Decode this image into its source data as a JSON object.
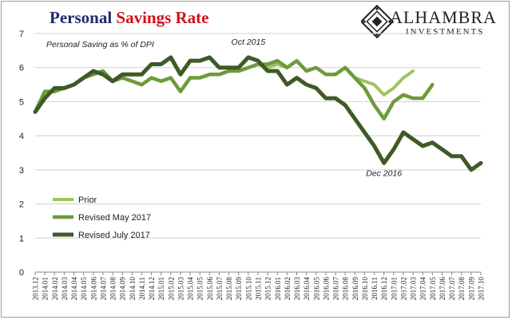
{
  "header": {
    "title_part1": "Personal",
    "title_part2": "Savings Rate",
    "brand_name": "ALHAMBRA",
    "brand_sub": "INVESTMENTS"
  },
  "colors": {
    "prior": "#9dc45f",
    "revised_may": "#6f9a3a",
    "revised_july": "#3f5a25",
    "title_blue": "#1f2a6b",
    "title_red": "#d0121b",
    "gridline": "#cfcfcf"
  },
  "chart_data": {
    "type": "line",
    "title": "Personal Savings Rate",
    "subtitle": "Personal Saving as % of DPI",
    "ylim": [
      0,
      7
    ],
    "yticks": [
      0,
      1,
      2,
      3,
      4,
      5,
      6,
      7
    ],
    "grid": true,
    "legend_position": "bottom-left",
    "categories": [
      "2013.12",
      "2014.01",
      "2014.02",
      "2014.03",
      "2014.04",
      "2014.05",
      "2014.06",
      "2014.07",
      "2014.08",
      "2014.09",
      "2014.10",
      "2014.11",
      "2014.12",
      "2015.01",
      "2015.02",
      "2015.03",
      "2015.04",
      "2015.05",
      "2015.06",
      "2015.07",
      "2015.08",
      "2015.09",
      "2015.10",
      "2015.11",
      "2015.12",
      "2016.01",
      "2016.02",
      "2016.03",
      "2016.04",
      "2016.05",
      "2016.06",
      "2016.07",
      "2016.08",
      "2016.09",
      "2016.10",
      "2016.11",
      "2016.12",
      "2017.01",
      "2017.02",
      "2017.03",
      "2017.04",
      "2017.05",
      "2017.06",
      "2017.07",
      "2017.08",
      "2017.09",
      "2017.10"
    ],
    "series": [
      {
        "name": "Prior",
        "color": "#9dc45f",
        "values": [
          4.7,
          5.3,
          5.3,
          5.4,
          5.5,
          5.7,
          5.8,
          5.9,
          5.6,
          5.7,
          5.6,
          5.5,
          5.7,
          5.6,
          5.7,
          5.3,
          5.7,
          5.7,
          5.8,
          5.8,
          5.9,
          5.9,
          6.0,
          6.1,
          6.0,
          6.1,
          6.0,
          6.2,
          5.9,
          6.0,
          5.8,
          5.8,
          6.0,
          5.7,
          5.6,
          5.5,
          5.2,
          5.4,
          5.7,
          5.9,
          null,
          null,
          null,
          null,
          null,
          null,
          null
        ]
      },
      {
        "name": "Revised May 2017",
        "color": "#6f9a3a",
        "values": [
          4.7,
          5.3,
          5.3,
          5.4,
          5.5,
          5.7,
          5.8,
          5.9,
          5.6,
          5.7,
          5.6,
          5.5,
          5.7,
          5.6,
          5.7,
          5.3,
          5.7,
          5.7,
          5.8,
          5.8,
          5.9,
          5.9,
          6.0,
          6.1,
          6.1,
          6.2,
          6.0,
          6.2,
          5.9,
          6.0,
          5.8,
          5.8,
          6.0,
          5.7,
          5.4,
          4.9,
          4.5,
          5.0,
          5.2,
          5.1,
          5.1,
          5.5,
          null,
          null,
          null,
          null,
          null
        ]
      },
      {
        "name": "Revised July 2017",
        "color": "#3f5a25",
        "values": [
          4.7,
          5.1,
          5.4,
          5.4,
          5.5,
          5.7,
          5.9,
          5.8,
          5.6,
          5.8,
          5.8,
          5.8,
          6.1,
          6.1,
          6.3,
          5.8,
          6.2,
          6.2,
          6.3,
          6.0,
          6.0,
          6.0,
          6.3,
          6.2,
          5.9,
          5.9,
          5.5,
          5.7,
          5.5,
          5.4,
          5.1,
          5.1,
          4.9,
          4.5,
          4.1,
          3.7,
          3.2,
          3.6,
          4.1,
          3.9,
          3.7,
          3.8,
          3.6,
          3.4,
          3.4,
          3.0,
          3.2
        ]
      }
    ],
    "annotations": [
      {
        "text": "Oct 2015",
        "category": "2015.10",
        "value": 6.3
      },
      {
        "text": "Dec 2016",
        "category": "2016.12",
        "value": 3.2
      }
    ]
  }
}
